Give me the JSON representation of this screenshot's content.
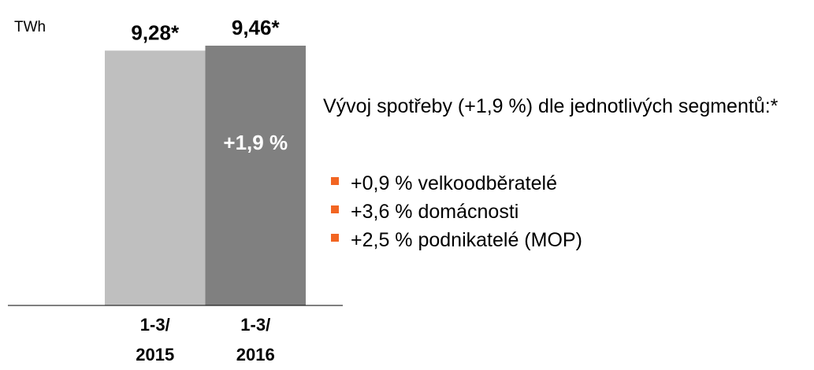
{
  "chart_data": {
    "type": "bar",
    "unit": "TWh",
    "categories": [
      "1-3/ 2015",
      "1-3/ 2016"
    ],
    "values": [
      9.28,
      9.46
    ],
    "value_labels": [
      "9,28*",
      "9,46*"
    ],
    "colors": [
      "#bfbfbf",
      "#808080"
    ],
    "annotation": "+1,9 %",
    "notes": {
      "heading": "Vývoj spotřeby (+1,9 %) dle jednotlivých segmentů:*",
      "bullets": [
        "+0,9 % velkoodběratelé",
        "+3,6 % domácnosti",
        "+2,5 % podnikatelé (MOP)"
      ],
      "bullet_color": "#f26522"
    }
  }
}
